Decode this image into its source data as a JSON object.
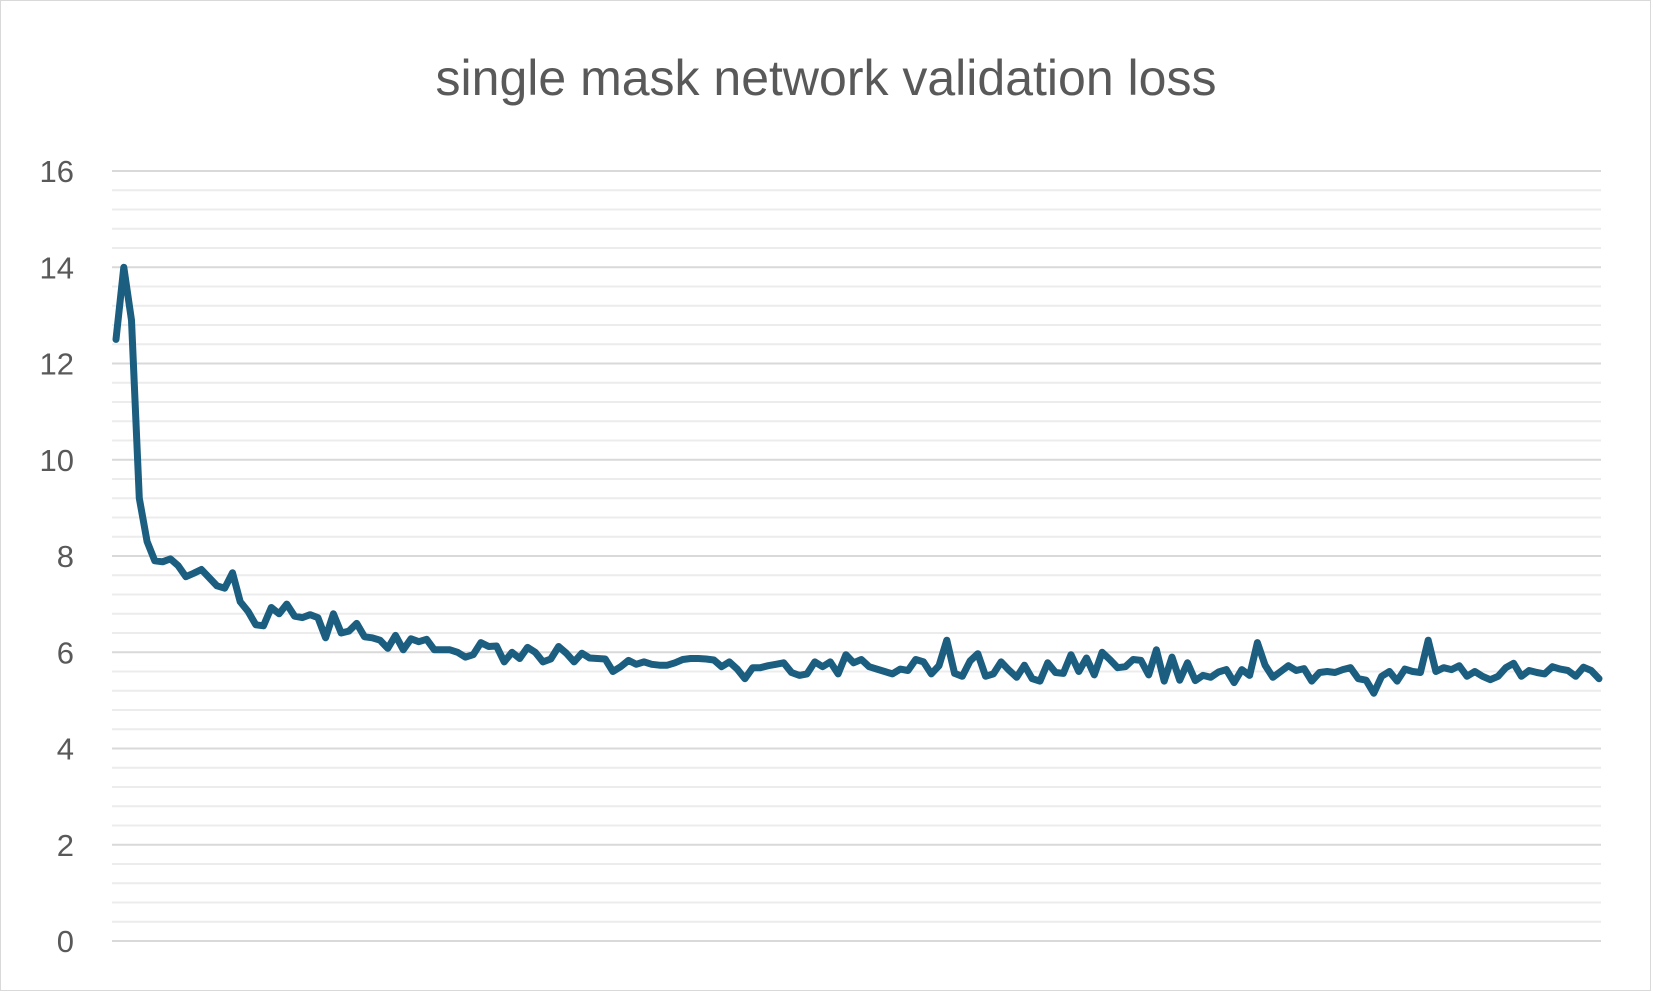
{
  "chart_data": {
    "type": "line",
    "title": "single mask network validation loss",
    "xlabel": "",
    "ylabel": "",
    "ylim": [
      0,
      16
    ],
    "y_major_step": 2,
    "y_minor_step": 0.4,
    "x_tick_labels": false,
    "legend": "none",
    "grid": true,
    "line_color": "#1b5e80",
    "y_tick_labels": [
      "0",
      "2",
      "4",
      "6",
      "8",
      "10",
      "12",
      "14",
      "16"
    ],
    "series": [
      {
        "values": [
          12.5,
          14.0,
          12.9,
          9.2,
          8.3,
          7.9,
          7.88,
          7.94,
          7.8,
          7.57,
          7.64,
          7.72,
          7.55,
          7.38,
          7.33,
          7.65,
          7.05,
          6.85,
          6.57,
          6.55,
          6.93,
          6.8,
          7.0,
          6.75,
          6.72,
          6.78,
          6.72,
          6.3,
          6.8,
          6.4,
          6.44,
          6.6,
          6.32,
          6.3,
          6.25,
          6.08,
          6.35,
          6.05,
          6.28,
          6.22,
          6.27,
          6.05,
          6.05,
          6.05,
          6.0,
          5.9,
          5.95,
          6.2,
          6.12,
          6.13,
          5.8,
          6.0,
          5.87,
          6.1,
          6.0,
          5.8,
          5.86,
          6.12,
          5.98,
          5.8,
          5.98,
          5.88,
          5.87,
          5.86,
          5.6,
          5.7,
          5.83,
          5.75,
          5.8,
          5.75,
          5.73,
          5.73,
          5.78,
          5.85,
          5.87,
          5.87,
          5.86,
          5.84,
          5.7,
          5.8,
          5.65,
          5.45,
          5.68,
          5.68,
          5.72,
          5.75,
          5.78,
          5.58,
          5.52,
          5.55,
          5.8,
          5.7,
          5.8,
          5.55,
          5.95,
          5.78,
          5.85,
          5.7,
          5.65,
          5.6,
          5.55,
          5.65,
          5.62,
          5.85,
          5.8,
          5.55,
          5.72,
          6.25,
          5.56,
          5.5,
          5.82,
          5.97,
          5.5,
          5.55,
          5.8,
          5.63,
          5.48,
          5.73,
          5.45,
          5.4,
          5.78,
          5.58,
          5.56,
          5.95,
          5.6,
          5.88,
          5.53,
          6.0,
          5.85,
          5.68,
          5.7,
          5.85,
          5.83,
          5.53,
          6.05,
          5.4,
          5.9,
          5.42,
          5.78,
          5.41,
          5.52,
          5.48,
          5.59,
          5.64,
          5.37,
          5.64,
          5.52,
          6.2,
          5.73,
          5.48,
          5.6,
          5.72,
          5.62,
          5.66,
          5.4,
          5.58,
          5.6,
          5.58,
          5.64,
          5.68,
          5.45,
          5.42,
          5.15,
          5.5,
          5.6,
          5.4,
          5.65,
          5.6,
          5.58,
          6.25,
          5.6,
          5.68,
          5.64,
          5.72,
          5.5,
          5.6,
          5.5,
          5.43,
          5.5,
          5.68,
          5.77,
          5.5,
          5.62,
          5.58,
          5.55,
          5.7,
          5.65,
          5.62,
          5.5,
          5.69,
          5.62,
          5.45
        ]
      }
    ]
  }
}
